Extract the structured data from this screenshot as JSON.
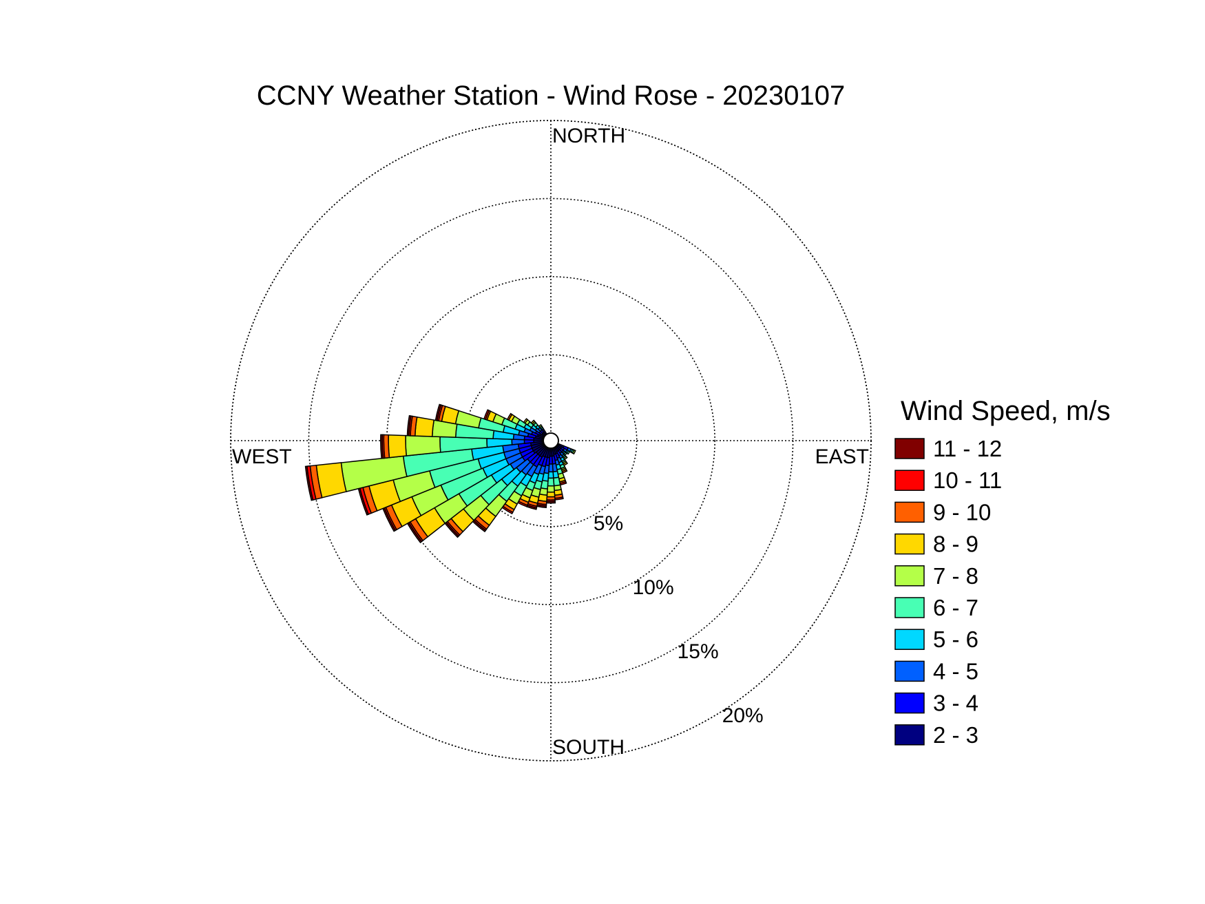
{
  "chart_data": {
    "type": "windrose",
    "title": "CCNY Weather Station - Wind Rose - 20230107",
    "direction_labels": {
      "north": "NORTH",
      "south": "SOUTH",
      "east": "EAST",
      "west": "WEST"
    },
    "radial_ticks": [
      5,
      10,
      15,
      20
    ],
    "radial_tick_labels": [
      "5%",
      "10%",
      "15%",
      "20%"
    ],
    "r_max": 20.5,
    "r_offset": 0.5,
    "legend": {
      "title": "Wind Speed, m/s",
      "placement": "right"
    },
    "speed_bins": [
      {
        "label": "2 - 3",
        "color": "#000080"
      },
      {
        "label": "3 - 4",
        "color": "#0000ff"
      },
      {
        "label": "4 - 5",
        "color": "#0060ff"
      },
      {
        "label": "5 - 6",
        "color": "#00d8ff"
      },
      {
        "label": "6 - 7",
        "color": "#48ffb4"
      },
      {
        "label": "7 - 8",
        "color": "#b4ff48"
      },
      {
        "label": "8 - 9",
        "color": "#ffd800"
      },
      {
        "label": "9 - 10",
        "color": "#ff6000"
      },
      {
        "label": "10 - 11",
        "color": "#ff0000"
      },
      {
        "label": "11 - 12",
        "color": "#800000"
      }
    ],
    "sector_width_deg": 8,
    "sectors": [
      {
        "direction_deg": 116,
        "values": [
          0.4,
          0.3,
          0.2,
          0.1,
          0.1,
          0.1,
          0.0,
          0.0,
          0.0,
          0.0
        ]
      },
      {
        "direction_deg": 124,
        "values": [
          0.3,
          0.2,
          0.2,
          0.1,
          0.1,
          0.0,
          0.0,
          0.0,
          0.0,
          0.0
        ]
      },
      {
        "direction_deg": 132,
        "values": [
          0.3,
          0.2,
          0.1,
          0.1,
          0.1,
          0.0,
          0.0,
          0.0,
          0.0,
          0.0
        ]
      },
      {
        "direction_deg": 140,
        "values": [
          0.3,
          0.2,
          0.2,
          0.1,
          0.1,
          0.1,
          0.0,
          0.0,
          0.0,
          0.0
        ]
      },
      {
        "direction_deg": 148,
        "values": [
          0.3,
          0.3,
          0.2,
          0.2,
          0.1,
          0.1,
          0.1,
          0.0,
          0.0,
          0.0
        ]
      },
      {
        "direction_deg": 156,
        "values": [
          0.4,
          0.3,
          0.3,
          0.2,
          0.2,
          0.1,
          0.1,
          0.1,
          0.0,
          0.0
        ]
      },
      {
        "direction_deg": 164,
        "values": [
          0.4,
          0.4,
          0.3,
          0.3,
          0.3,
          0.3,
          0.2,
          0.1,
          0.1,
          0.0
        ]
      },
      {
        "direction_deg": 172,
        "values": [
          0.5,
          0.5,
          0.5,
          0.4,
          0.5,
          0.3,
          0.3,
          0.2,
          0.1,
          0.0
        ]
      },
      {
        "direction_deg": 180,
        "values": [
          0.5,
          0.5,
          0.5,
          0.4,
          0.5,
          0.4,
          0.3,
          0.2,
          0.1,
          0.1
        ]
      },
      {
        "direction_deg": 188,
        "values": [
          0.6,
          0.5,
          0.5,
          0.5,
          0.5,
          0.4,
          0.4,
          0.2,
          0.1,
          0.1
        ]
      },
      {
        "direction_deg": 196,
        "values": [
          0.6,
          0.6,
          0.5,
          0.5,
          0.5,
          0.5,
          0.4,
          0.2,
          0.1,
          0.1
        ]
      },
      {
        "direction_deg": 204,
        "values": [
          0.6,
          0.6,
          0.6,
          0.6,
          0.5,
          0.5,
          0.3,
          0.2,
          0.1,
          0.0
        ]
      },
      {
        "direction_deg": 212,
        "values": [
          0.7,
          0.7,
          0.7,
          0.7,
          0.7,
          0.6,
          0.4,
          0.2,
          0.1,
          0.0
        ]
      },
      {
        "direction_deg": 220,
        "values": [
          0.7,
          0.7,
          0.8,
          0.9,
          1.2,
          1.2,
          0.7,
          0.3,
          0.1,
          0.1
        ]
      },
      {
        "direction_deg": 228,
        "values": [
          0.7,
          0.7,
          0.9,
          1.2,
          1.7,
          1.4,
          1.0,
          0.3,
          0.1,
          0.1
        ]
      },
      {
        "direction_deg": 236,
        "values": [
          0.8,
          0.8,
          0.9,
          1.4,
          2.4,
          1.8,
          1.4,
          0.4,
          0.1,
          0.1
        ]
      },
      {
        "direction_deg": 244,
        "values": [
          0.8,
          0.8,
          1.0,
          1.6,
          2.9,
          2.0,
          1.4,
          0.4,
          0.1,
          0.1
        ]
      },
      {
        "direction_deg": 252,
        "values": [
          0.8,
          0.8,
          1.0,
          1.7,
          3.2,
          2.4,
          1.6,
          0.4,
          0.2,
          0.1
        ]
      },
      {
        "direction_deg": 260,
        "values": [
          0.8,
          0.8,
          1.0,
          2.0,
          4.4,
          4.0,
          1.6,
          0.4,
          0.2,
          0.1
        ]
      },
      {
        "direction_deg": 268,
        "values": [
          0.6,
          0.6,
          0.8,
          1.6,
          3.0,
          2.2,
          1.1,
          0.3,
          0.1,
          0.1
        ]
      },
      {
        "direction_deg": 276,
        "values": [
          0.6,
          0.6,
          0.7,
          1.3,
          2.4,
          1.5,
          1.1,
          0.3,
          0.1,
          0.1
        ]
      },
      {
        "direction_deg": 284,
        "values": [
          0.5,
          0.5,
          0.6,
          1.0,
          1.6,
          1.5,
          0.9,
          0.2,
          0.1,
          0.1
        ]
      },
      {
        "direction_deg": 292,
        "values": [
          0.4,
          0.4,
          0.5,
          0.6,
          0.9,
          0.6,
          0.4,
          0.1,
          0.1,
          0.0
        ]
      },
      {
        "direction_deg": 300,
        "values": [
          0.3,
          0.3,
          0.4,
          0.4,
          0.5,
          0.4,
          0.2,
          0.1,
          0.0,
          0.0
        ]
      },
      {
        "direction_deg": 308,
        "values": [
          0.2,
          0.2,
          0.3,
          0.3,
          0.3,
          0.2,
          0.1,
          0.0,
          0.0,
          0.0
        ]
      },
      {
        "direction_deg": 316,
        "values": [
          0.2,
          0.2,
          0.2,
          0.2,
          0.2,
          0.1,
          0.1,
          0.0,
          0.0,
          0.0
        ]
      },
      {
        "direction_deg": 324,
        "values": [
          0.2,
          0.1,
          0.1,
          0.1,
          0.1,
          0.1,
          0.0,
          0.0,
          0.0,
          0.0
        ]
      }
    ]
  }
}
